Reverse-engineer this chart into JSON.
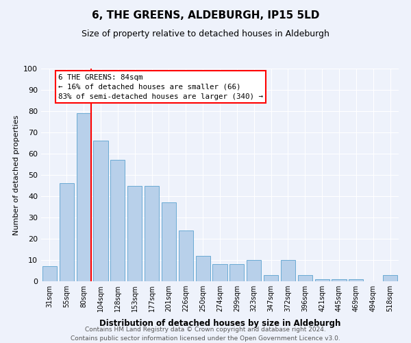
{
  "title": "6, THE GREENS, ALDEBURGH, IP15 5LD",
  "subtitle": "Size of property relative to detached houses in Aldeburgh",
  "xlabel": "Distribution of detached houses by size in Aldeburgh",
  "ylabel": "Number of detached properties",
  "categories": [
    "31sqm",
    "55sqm",
    "80sqm",
    "104sqm",
    "128sqm",
    "153sqm",
    "177sqm",
    "201sqm",
    "226sqm",
    "250sqm",
    "274sqm",
    "299sqm",
    "323sqm",
    "347sqm",
    "372sqm",
    "396sqm",
    "421sqm",
    "445sqm",
    "469sqm",
    "494sqm",
    "518sqm"
  ],
  "values": [
    7,
    46,
    79,
    66,
    57,
    45,
    45,
    37,
    24,
    12,
    8,
    8,
    10,
    3,
    10,
    3,
    1,
    1,
    1,
    0,
    3
  ],
  "bar_color": "#b8d0ea",
  "bar_edge_color": "#6aaad4",
  "vline_x_index": 2,
  "vline_color": "red",
  "annotation_text": "6 THE GREENS: 84sqm\n← 16% of detached houses are smaller (66)\n83% of semi-detached houses are larger (340) →",
  "annotation_box_color": "white",
  "annotation_box_edge": "red",
  "ylim": [
    0,
    100
  ],
  "yticks": [
    0,
    10,
    20,
    30,
    40,
    50,
    60,
    70,
    80,
    90,
    100
  ],
  "footer": "Contains HM Land Registry data © Crown copyright and database right 2024.\nContains public sector information licensed under the Open Government Licence v3.0.",
  "bg_color": "#eef2fb",
  "grid_color": "white",
  "title_fontsize": 11,
  "subtitle_fontsize": 9
}
